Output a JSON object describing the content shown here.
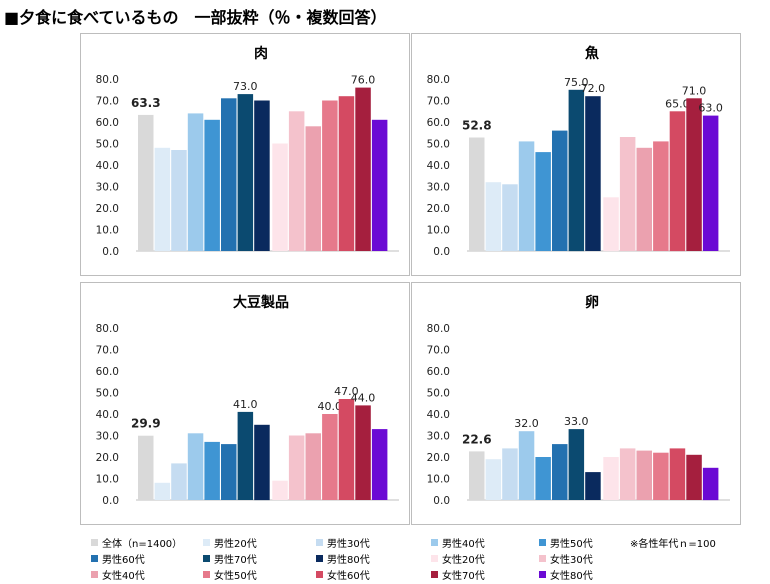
{
  "page_title": "■夕食に食べているもの　一部抜粋（％・複数回答）",
  "footnote": "※各性年代ｎ=100",
  "series_colors": [
    "#d9d9d9",
    "#ddebf7",
    "#c5dcf1",
    "#9ccaec",
    "#3f95d3",
    "#2371b0",
    "#0b4a70",
    "#0a2a5e",
    "#fde4ea",
    "#f4c2cc",
    "#eba1af",
    "#e6798b",
    "#d44a62",
    "#a51f3e",
    "#6b0ad4"
  ],
  "legend": {
    "items": [
      "全体（n=1400）",
      "男性20代",
      "男性30代",
      "男性40代",
      "男性50代",
      "男性60代",
      "男性70代",
      "男性80代",
      "女性20代",
      "女性30代",
      "女性40代",
      "女性50代",
      "女性60代",
      "女性70代",
      "女性80代"
    ]
  },
  "chart_data": [
    {
      "type": "bar",
      "title": "肉",
      "ylim": [
        0,
        80
      ],
      "yticks": [
        "0.0",
        "10.0",
        "20.0",
        "30.0",
        "40.0",
        "50.0",
        "60.0",
        "70.0",
        "80.0"
      ],
      "values": [
        63.3,
        48,
        47,
        64,
        61,
        71,
        73.0,
        70,
        50,
        65,
        58,
        70,
        72,
        76.0,
        61
      ],
      "labels": [
        "63.3",
        "",
        "",
        "",
        "",
        "",
        "73.0",
        "",
        "",
        "",
        "",
        "",
        "",
        "76.0",
        ""
      ]
    },
    {
      "type": "bar",
      "title": "魚",
      "ylim": [
        0,
        80
      ],
      "yticks": [
        "0.0",
        "10.0",
        "20.0",
        "30.0",
        "40.0",
        "50.0",
        "60.0",
        "70.0",
        "80.0"
      ],
      "values": [
        52.8,
        32,
        31,
        51,
        46,
        56,
        75.0,
        72.0,
        25,
        53,
        48,
        51,
        65.0,
        71.0,
        63.0
      ],
      "labels": [
        "52.8",
        "",
        "",
        "",
        "",
        "",
        "75.0",
        "72.0",
        "",
        "",
        "",
        "",
        "65.0",
        "71.0",
        "63.0"
      ]
    },
    {
      "type": "bar",
      "title": "大豆製品",
      "ylim": [
        0,
        80
      ],
      "yticks": [
        "0.0",
        "10.0",
        "20.0",
        "30.0",
        "40.0",
        "50.0",
        "60.0",
        "70.0",
        "80.0"
      ],
      "values": [
        29.9,
        8,
        17,
        31,
        27,
        26,
        41.0,
        35,
        9,
        30,
        31,
        40.0,
        47.0,
        44.0,
        33
      ],
      "labels": [
        "29.9",
        "",
        "",
        "",
        "",
        "",
        "41.0",
        "",
        "",
        "",
        "",
        "40.0",
        "47.0",
        "44.0",
        ""
      ]
    },
    {
      "type": "bar",
      "title": "卵",
      "ylim": [
        0,
        80
      ],
      "yticks": [
        "0.0",
        "10.0",
        "20.0",
        "30.0",
        "40.0",
        "50.0",
        "60.0",
        "70.0",
        "80.0"
      ],
      "values": [
        22.6,
        19,
        24,
        32.0,
        20,
        26,
        33.0,
        13,
        20,
        24,
        23,
        22,
        24,
        21,
        15
      ],
      "labels": [
        "22.6",
        "",
        "",
        "32.0",
        "",
        "",
        "33.0",
        "",
        "",
        "",
        "",
        "",
        "",
        "",
        ""
      ]
    }
  ]
}
